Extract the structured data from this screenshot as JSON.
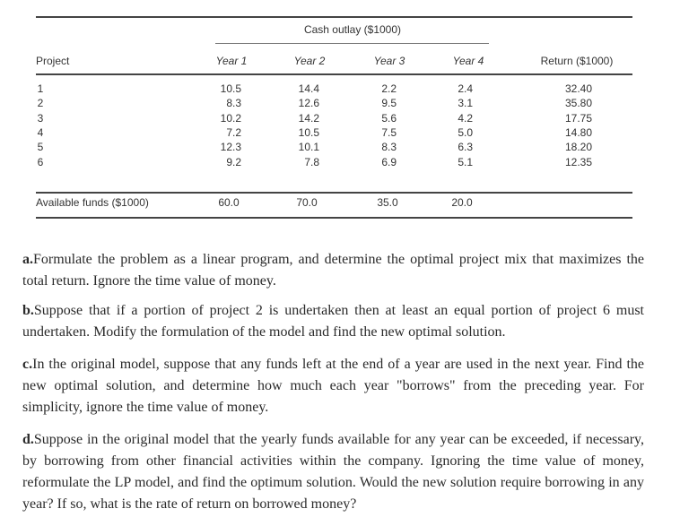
{
  "table": {
    "group_header": "Cash outlay ($1000)",
    "headers": [
      "Project",
      "Year 1",
      "Year 2",
      "Year 3",
      "Year 4",
      "Return ($1000)"
    ],
    "rows": [
      [
        "1",
        "10.5",
        "14.4",
        "2.2",
        "2.4",
        "32.40"
      ],
      [
        "2",
        "8.3",
        "12.6",
        "9.5",
        "3.1",
        "35.80"
      ],
      [
        "3",
        "10.2",
        "14.2",
        "5.6",
        "4.2",
        "17.75"
      ],
      [
        "4",
        "7.2",
        "10.5",
        "7.5",
        "5.0",
        "14.80"
      ],
      [
        "5",
        "12.3",
        "10.1",
        "8.3",
        "6.3",
        "18.20"
      ],
      [
        "6",
        "9.2",
        "7.8",
        "6.9",
        "5.1",
        "12.35"
      ]
    ],
    "footer": [
      "Available funds ($1000)",
      "60.0",
      "70.0",
      "35.0",
      "20.0"
    ]
  },
  "questions": [
    {
      "label": "a.",
      "text": "Formulate the problem as a linear program, and determine the optimal project mix that maximizes the total return. Ignore the time value of money."
    },
    {
      "label": "b.",
      "text": "Suppose that if a portion of project 2 is undertaken then at least an equal portion of project 6 must undertaken. Modify the formulation of the model and find the new optimal solution."
    },
    {
      "label": "c.",
      "text": "In the original model, suppose that any funds left at the end of a year are used in the next year. Find the new optimal solution, and determine how much each year \"borrows\" from the preceding year. For simplicity, ignore the time value of money."
    },
    {
      "label": "d.",
      "text": "Suppose in the original model that the yearly funds available for any year can be exceeded, if necessary, by borrowing from other financial activities within the company. Ignoring the time value of money, reformulate the LP model, and find the optimum solution. Would the new solution require borrowing in any year? If so, what is the rate of return on borrowed money?"
    }
  ]
}
